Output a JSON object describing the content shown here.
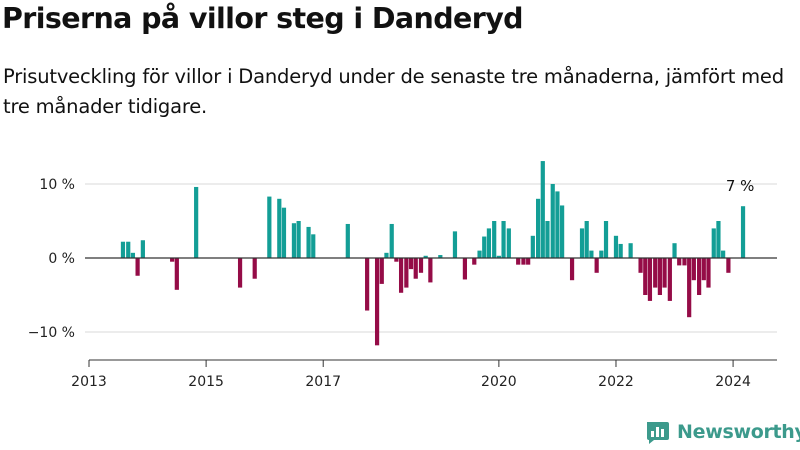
{
  "title": "Priserna på villor steg i Danderyd",
  "subtitle": "Prisutveckling för villor i Danderyd under de senaste tre månaderna, jämfört med tre månader tidigare.",
  "logo_text": "Newsworthy",
  "colors": {
    "positive": "#139e96",
    "negative": "#950c47",
    "grid": "#d9d9d9",
    "zero_line": "#333333",
    "logo": "#3c9a8c"
  },
  "icons": {
    "logo": "bar-chart-speech-bubble-icon"
  },
  "chart_data": {
    "type": "bar",
    "title": "Priserna på villor steg i Danderyd",
    "xlabel": "",
    "ylabel": "",
    "x_unit": "year",
    "xlim": [
      2013.0,
      2024.75
    ],
    "ylim": [
      -13,
      15
    ],
    "yticks": [
      {
        "value": 10,
        "label": "10 %"
      },
      {
        "value": 0,
        "label": "0 %"
      },
      {
        "value": -10,
        "label": "−10 %"
      }
    ],
    "xticks": [
      {
        "value": 2013,
        "label": "2013"
      },
      {
        "value": 2015,
        "label": "2015"
      },
      {
        "value": 2017,
        "label": "2017"
      },
      {
        "value": 2020,
        "label": "2020"
      },
      {
        "value": 2022,
        "label": "2022"
      },
      {
        "value": 2024,
        "label": "2024"
      }
    ],
    "annotation": {
      "label": "7 %",
      "x": 2024.12,
      "y": 7
    },
    "grid": true,
    "x": [
      2013.58,
      2013.67,
      2013.75,
      2013.83,
      2013.92,
      2014.42,
      2014.5,
      2014.83,
      2015.58,
      2015.83,
      2016.08,
      2016.25,
      2016.33,
      2016.5,
      2016.58,
      2016.75,
      2016.83,
      2017.42,
      2017.75,
      2017.92,
      2018.0,
      2018.08,
      2018.17,
      2018.25,
      2018.33,
      2018.42,
      2018.5,
      2018.58,
      2018.67,
      2018.75,
      2018.83,
      2019.0,
      2019.25,
      2019.42,
      2019.58,
      2019.67,
      2019.75,
      2019.83,
      2019.92,
      2020.0,
      2020.08,
      2020.17,
      2020.33,
      2020.42,
      2020.5,
      2020.58,
      2020.67,
      2020.75,
      2020.83,
      2020.92,
      2021.0,
      2021.08,
      2021.25,
      2021.42,
      2021.5,
      2021.58,
      2021.67,
      2021.75,
      2021.83,
      2022.0,
      2022.08,
      2022.25,
      2022.42,
      2022.5,
      2022.58,
      2022.67,
      2022.75,
      2022.83,
      2022.92,
      2023.0,
      2023.08,
      2023.17,
      2023.25,
      2023.33,
      2023.42,
      2023.5,
      2023.58,
      2023.67,
      2023.75,
      2023.83,
      2023.92,
      2024.17
    ],
    "values": [
      2.2,
      2.2,
      0.7,
      -2.4,
      2.4,
      -0.5,
      -4.3,
      9.6,
      -4.0,
      -2.8,
      8.3,
      8.0,
      6.8,
      4.7,
      5.0,
      4.2,
      3.2,
      4.6,
      -7.1,
      -11.8,
      -3.5,
      0.7,
      4.6,
      -0.5,
      -4.7,
      -4.0,
      -1.5,
      -2.8,
      -2.0,
      0.3,
      -3.3,
      0.4,
      3.6,
      -2.9,
      -0.9,
      1.0,
      2.9,
      4.0,
      5.0,
      0.3,
      5.0,
      4.0,
      -0.9,
      -0.9,
      -0.9,
      3.0,
      8.0,
      13.1,
      5.0,
      10.0,
      9.0,
      7.1,
      -3.0,
      4.0,
      5.0,
      1.0,
      -2.0,
      1.0,
      5.0,
      3.0,
      1.9,
      2.0,
      -2.0,
      -5.0,
      -5.8,
      -4.0,
      -5.0,
      -4.0,
      -5.8,
      2.0,
      -1.0,
      -1.0,
      -8.0,
      -3.0,
      -5.0,
      -3.0,
      -4.0,
      4.0,
      5.0,
      1.0,
      -2.0,
      7.0
    ]
  }
}
